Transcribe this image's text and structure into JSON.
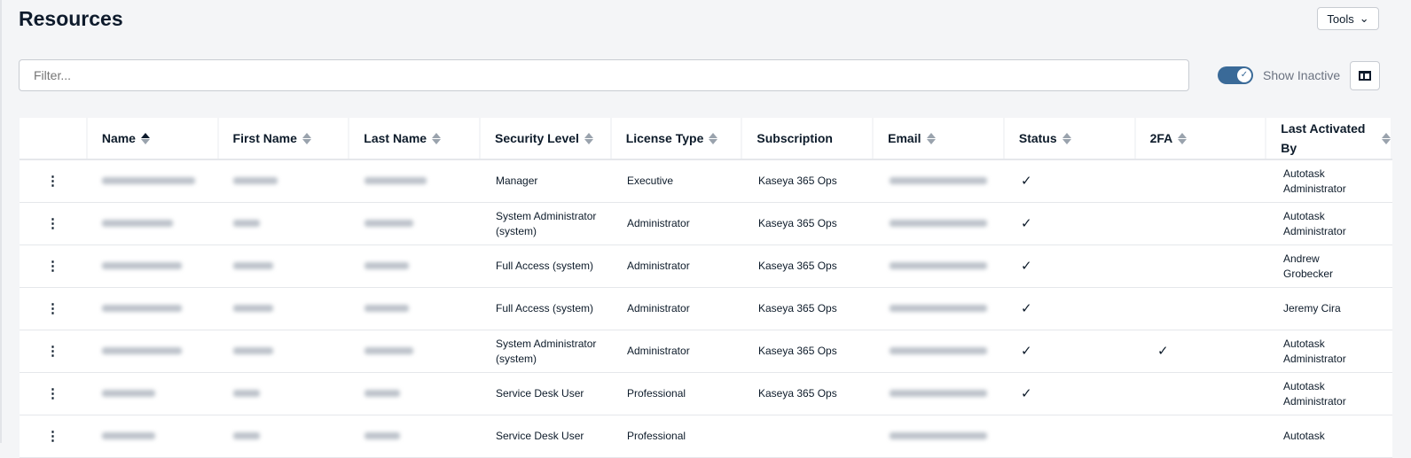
{
  "page": {
    "title": "Resources",
    "tools_label": "Tools",
    "filter_placeholder": "Filter...",
    "show_inactive_label": "Show Inactive",
    "show_inactive": true
  },
  "columns": [
    "",
    "Name",
    "First Name",
    "Last Name",
    "Security Level",
    "License Type",
    "Subscription",
    "Email",
    "Status",
    "2FA",
    "Last Activated By"
  ],
  "sort": {
    "column": "Name",
    "direction": "ascending"
  },
  "rows": [
    {
      "security": "Manager",
      "license": "Executive",
      "subscription": "Kaseya 365 Ops",
      "status": "✓",
      "twofa": "",
      "last_activated": "Autotask Administrator"
    },
    {
      "security": "System Administrator (system)",
      "license": "Administrator",
      "subscription": "Kaseya 365 Ops",
      "status": "✓",
      "twofa": "",
      "last_activated": "Autotask Administrator"
    },
    {
      "security": "Full Access (system)",
      "license": "Administrator",
      "subscription": "Kaseya 365 Ops",
      "status": "✓",
      "twofa": "",
      "last_activated": "Andrew Grobecker"
    },
    {
      "security": "Full Access (system)",
      "license": "Administrator",
      "subscription": "Kaseya 365 Ops",
      "status": "✓",
      "twofa": "",
      "last_activated": "Jeremy Cira"
    },
    {
      "security": "System Administrator (system)",
      "license": "Administrator",
      "subscription": "Kaseya 365 Ops",
      "status": "✓",
      "twofa": "✓",
      "last_activated": "Autotask Administrator"
    },
    {
      "security": "Service Desk User",
      "license": "Professional",
      "subscription": "Kaseya 365 Ops",
      "status": "✓",
      "twofa": "",
      "last_activated": "Autotask Administrator"
    },
    {
      "security": "Service Desk User",
      "license": "Professional",
      "subscription": "",
      "status": "",
      "twofa": "",
      "last_activated": "Autotask"
    }
  ]
}
